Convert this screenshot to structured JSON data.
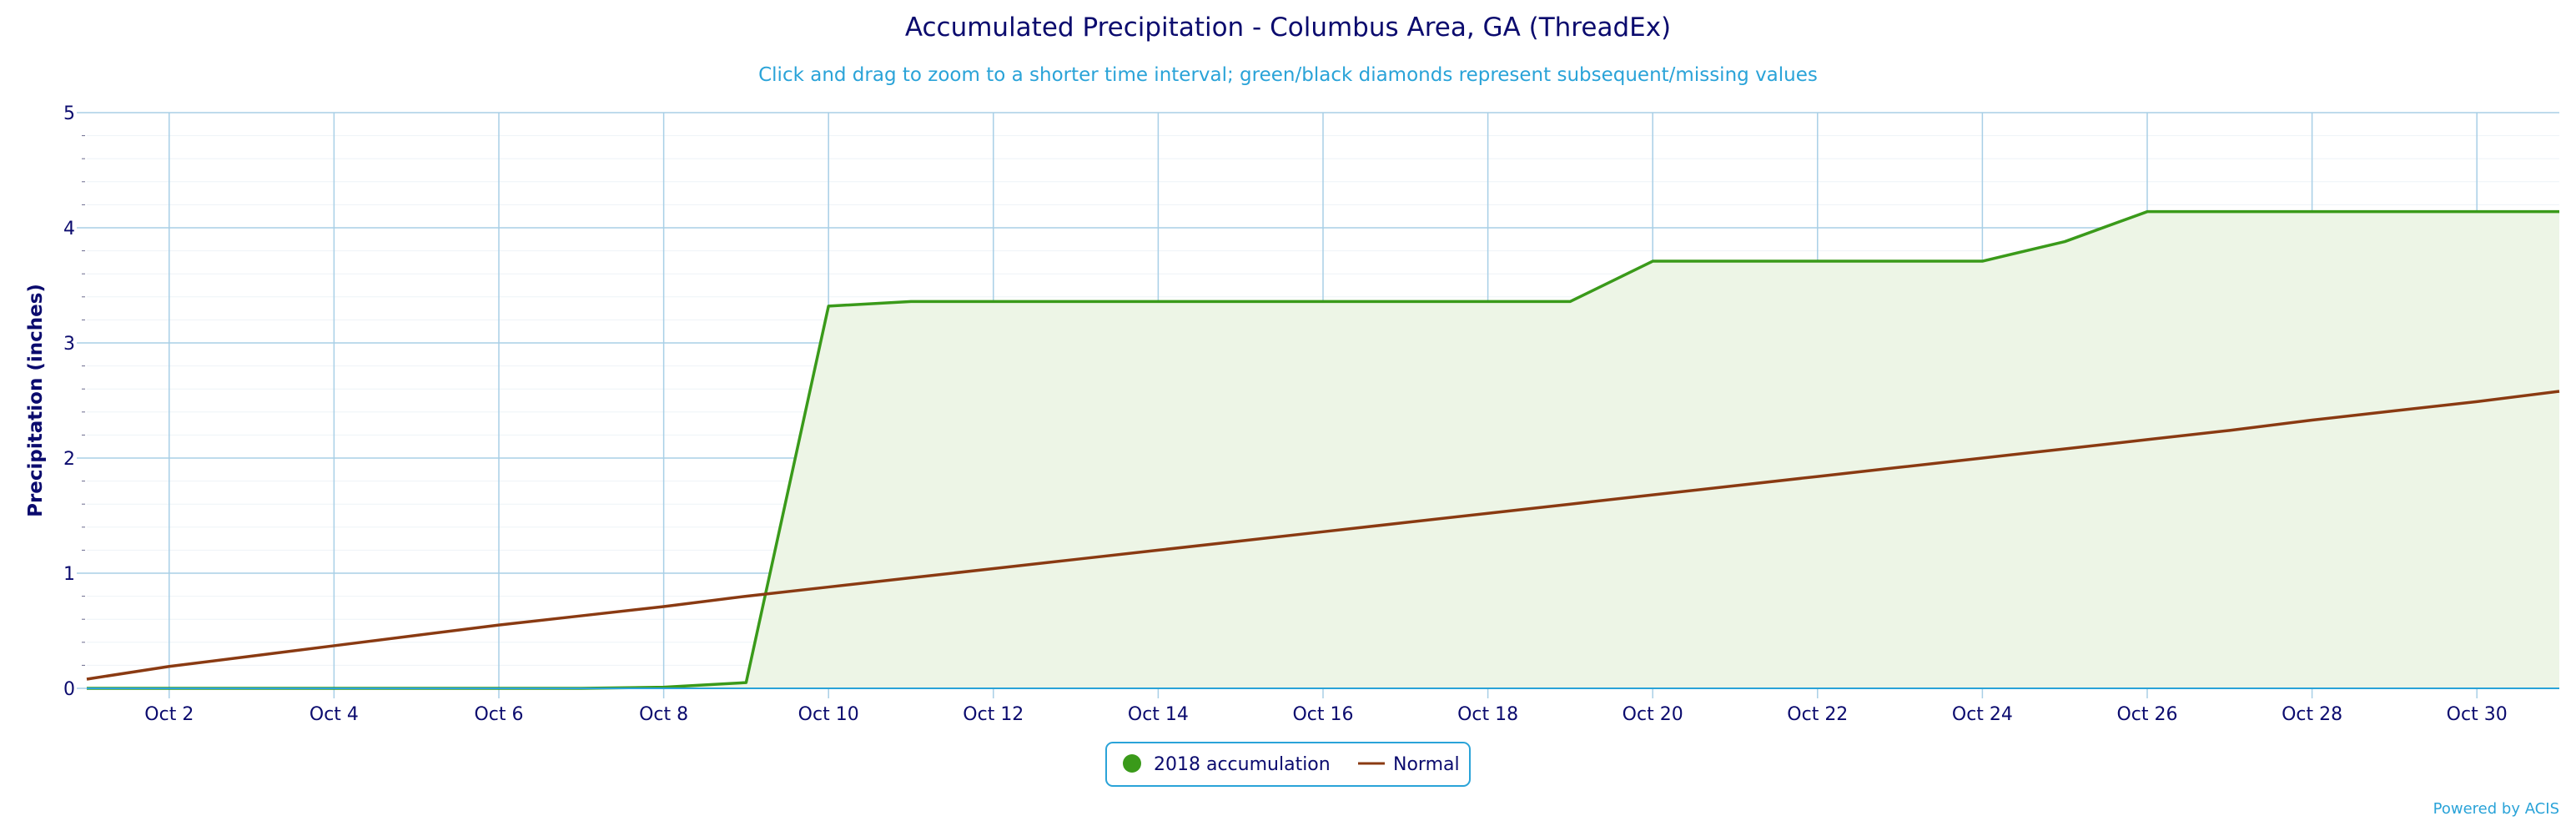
{
  "chart_data": {
    "type": "area",
    "title": "Accumulated Precipitation - Columbus Area, GA (ThreadEx)",
    "subtitle": "Click and drag to zoom to a shorter time interval; green/black diamonds represent subsequent/missing values",
    "xlabel": "",
    "ylabel": "Precipitation (inches)",
    "ylim": [
      0,
      5
    ],
    "yticks": [
      "0",
      "1",
      "2",
      "3",
      "4",
      "5"
    ],
    "xlim": [
      1,
      31
    ],
    "xticks": [
      {
        "day": 2,
        "label": "Oct 2"
      },
      {
        "day": 4,
        "label": "Oct 4"
      },
      {
        "day": 6,
        "label": "Oct 6"
      },
      {
        "day": 8,
        "label": "Oct 8"
      },
      {
        "day": 10,
        "label": "Oct 10"
      },
      {
        "day": 12,
        "label": "Oct 12"
      },
      {
        "day": 14,
        "label": "Oct 14"
      },
      {
        "day": 16,
        "label": "Oct 16"
      },
      {
        "day": 18,
        "label": "Oct 18"
      },
      {
        "day": 20,
        "label": "Oct 20"
      },
      {
        "day": 22,
        "label": "Oct 22"
      },
      {
        "day": 24,
        "label": "Oct 24"
      },
      {
        "day": 26,
        "label": "Oct 26"
      },
      {
        "day": 28,
        "label": "Oct 28"
      },
      {
        "day": 30,
        "label": "Oct 30"
      }
    ],
    "grid": true,
    "legend_position": "bottom-center",
    "x": [
      1,
      2,
      3,
      4,
      5,
      6,
      7,
      8,
      9,
      10,
      11,
      12,
      13,
      14,
      15,
      16,
      17,
      18,
      19,
      20,
      21,
      22,
      23,
      24,
      25,
      26,
      27,
      28,
      29,
      30,
      31
    ],
    "series": [
      {
        "name": "2018 accumulation",
        "type": "area",
        "color": "#3a9a1a",
        "fill": "#edf5e6",
        "legend_marker": "circle",
        "values": [
          0,
          0,
          0,
          0,
          0,
          0,
          0,
          0.01,
          0.05,
          3.32,
          3.36,
          3.36,
          3.36,
          3.36,
          3.36,
          3.36,
          3.36,
          3.36,
          3.36,
          3.71,
          3.71,
          3.71,
          3.71,
          3.71,
          3.88,
          4.14,
          4.14,
          4.14,
          4.14,
          4.14,
          4.14
        ]
      },
      {
        "name": "Normal",
        "type": "line",
        "color": "#8a3a12",
        "legend_marker": "line",
        "values": [
          0.08,
          0.19,
          0.28,
          0.37,
          0.46,
          0.55,
          0.63,
          0.71,
          0.8,
          0.88,
          0.96,
          1.04,
          1.12,
          1.2,
          1.28,
          1.36,
          1.44,
          1.52,
          1.6,
          1.68,
          1.76,
          1.84,
          1.92,
          2.0,
          2.08,
          2.16,
          2.24,
          2.33,
          2.41,
          2.49,
          2.58
        ]
      }
    ]
  },
  "credits": "Powered by ACIS",
  "colors": {
    "grid": "#a8cfe6",
    "axis": "#2aa3d8",
    "title": "#0b0b6e",
    "subtitle": "#2aa3d8"
  }
}
